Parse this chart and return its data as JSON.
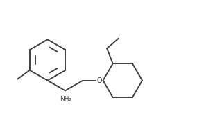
{
  "background_color": "#ffffff",
  "line_color": "#404040",
  "line_width": 1.4,
  "text_color": "#404040",
  "nh2_label": "NH₂",
  "o_label": "O",
  "figsize": [
    2.84,
    1.74
  ],
  "dpi": 100,
  "xlim": [
    0.0,
    10.0
  ],
  "ylim": [
    0.8,
    6.2
  ]
}
